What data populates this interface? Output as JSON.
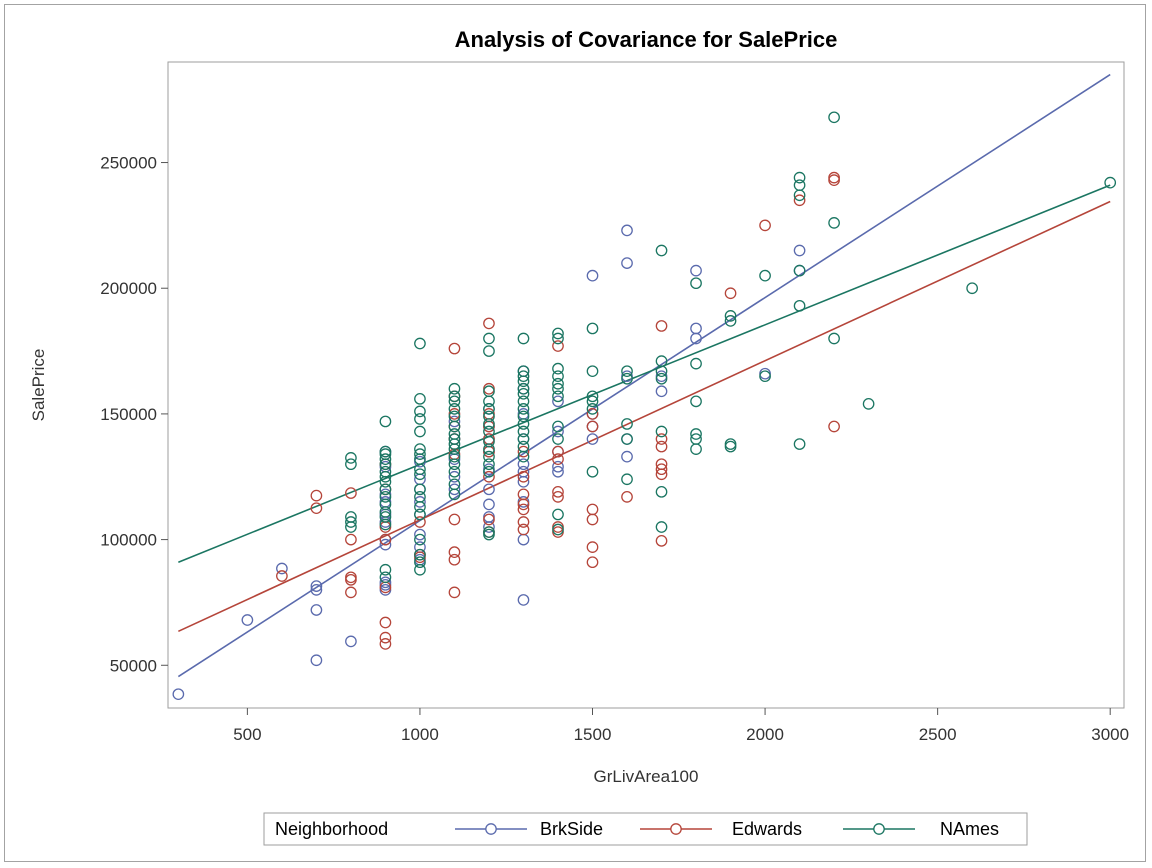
{
  "chart_data": {
    "type": "scatter",
    "title": "Analysis of Covariance for SalePrice",
    "xlabel": "GrLivArea100",
    "ylabel": "SalePrice",
    "xlim": [
      270,
      3040
    ],
    "ylim": [
      33000,
      290000
    ],
    "xticks": [
      500,
      1000,
      1500,
      2000,
      2500,
      3000
    ],
    "yticks": [
      50000,
      100000,
      150000,
      200000,
      250000
    ],
    "legend": {
      "title": "Neighborhood",
      "placement": "bottom"
    },
    "series": [
      {
        "name": "BrkSide",
        "color": "#5a6aad",
        "fit": {
          "x": [
            300,
            3000
          ],
          "y": [
            45500,
            285000
          ]
        },
        "points": [
          [
            300,
            38500
          ],
          [
            500,
            68000
          ],
          [
            600,
            88500
          ],
          [
            700,
            81500
          ],
          [
            700,
            80000
          ],
          [
            700,
            72000
          ],
          [
            700,
            52000
          ],
          [
            800,
            59500
          ],
          [
            900,
            135000
          ],
          [
            900,
            129000
          ],
          [
            900,
            118000
          ],
          [
            900,
            115000
          ],
          [
            900,
            110000
          ],
          [
            900,
            107000
          ],
          [
            900,
            100000
          ],
          [
            900,
            98000
          ],
          [
            900,
            83000
          ],
          [
            900,
            82000
          ],
          [
            900,
            80000
          ],
          [
            1000,
            131000
          ],
          [
            1000,
            124000
          ],
          [
            1000,
            120000
          ],
          [
            1000,
            115000
          ],
          [
            1000,
            110000
          ],
          [
            1000,
            102000
          ],
          [
            1000,
            97000
          ],
          [
            1000,
            92000
          ],
          [
            1100,
            147000
          ],
          [
            1100,
            140000
          ],
          [
            1100,
            132000
          ],
          [
            1100,
            125000
          ],
          [
            1100,
            120000
          ],
          [
            1200,
            152000
          ],
          [
            1200,
            145000
          ],
          [
            1200,
            140000
          ],
          [
            1200,
            135000
          ],
          [
            1200,
            128000
          ],
          [
            1200,
            120000
          ],
          [
            1200,
            114000
          ],
          [
            1200,
            109000
          ],
          [
            1200,
            105000
          ],
          [
            1300,
            167000
          ],
          [
            1300,
            160000
          ],
          [
            1300,
            150000
          ],
          [
            1300,
            140000
          ],
          [
            1300,
            130000
          ],
          [
            1300,
            127000
          ],
          [
            1300,
            123000
          ],
          [
            1300,
            115000
          ],
          [
            1300,
            100000
          ],
          [
            1300,
            76000
          ],
          [
            1400,
            155000
          ],
          [
            1400,
            143000
          ],
          [
            1400,
            135000
          ],
          [
            1400,
            129000
          ],
          [
            1400,
            127000
          ],
          [
            1500,
            205000
          ],
          [
            1500,
            150000
          ],
          [
            1500,
            145000
          ],
          [
            1500,
            140000
          ],
          [
            1600,
            223000
          ],
          [
            1600,
            210000
          ],
          [
            1600,
            165000
          ],
          [
            1600,
            140000
          ],
          [
            1600,
            133000
          ],
          [
            1700,
            165000
          ],
          [
            1700,
            159000
          ],
          [
            1800,
            207000
          ],
          [
            1800,
            184000
          ],
          [
            1800,
            180000
          ],
          [
            2000,
            166000
          ],
          [
            2100,
            215000
          ],
          [
            2100,
            207000
          ]
        ]
      },
      {
        "name": "Edwards",
        "color": "#b5453a",
        "fit": {
          "x": [
            300,
            3000
          ],
          "y": [
            63500,
            234500
          ]
        },
        "points": [
          [
            600,
            85500
          ],
          [
            700,
            117500
          ],
          [
            700,
            112500
          ],
          [
            800,
            118500
          ],
          [
            800,
            100000
          ],
          [
            800,
            85000
          ],
          [
            800,
            84000
          ],
          [
            800,
            79000
          ],
          [
            900,
            130000
          ],
          [
            900,
            120000
          ],
          [
            900,
            105000
          ],
          [
            900,
            100000
          ],
          [
            900,
            81000
          ],
          [
            900,
            67000
          ],
          [
            900,
            61000
          ],
          [
            900,
            58500
          ],
          [
            1000,
            107000
          ],
          [
            1000,
            94000
          ],
          [
            1000,
            93000
          ],
          [
            1100,
            176000
          ],
          [
            1100,
            157000
          ],
          [
            1100,
            150000
          ],
          [
            1100,
            145000
          ],
          [
            1100,
            140000
          ],
          [
            1100,
            134000
          ],
          [
            1100,
            108000
          ],
          [
            1100,
            95000
          ],
          [
            1100,
            92000
          ],
          [
            1100,
            79000
          ],
          [
            1200,
            186000
          ],
          [
            1200,
            160000
          ],
          [
            1200,
            150000
          ],
          [
            1200,
            145000
          ],
          [
            1200,
            140000
          ],
          [
            1200,
            135000
          ],
          [
            1200,
            125000
          ],
          [
            1200,
            108000
          ],
          [
            1200,
            103000
          ],
          [
            1300,
            135000
          ],
          [
            1300,
            125000
          ],
          [
            1300,
            118000
          ],
          [
            1300,
            114000
          ],
          [
            1300,
            112000
          ],
          [
            1300,
            107000
          ],
          [
            1300,
            104000
          ],
          [
            1400,
            177000
          ],
          [
            1400,
            135000
          ],
          [
            1400,
            132000
          ],
          [
            1400,
            119000
          ],
          [
            1400,
            117000
          ],
          [
            1400,
            105000
          ],
          [
            1400,
            103000
          ],
          [
            1500,
            150000
          ],
          [
            1500,
            145000
          ],
          [
            1500,
            112000
          ],
          [
            1500,
            108000
          ],
          [
            1500,
            97000
          ],
          [
            1500,
            91000
          ],
          [
            1600,
            117000
          ],
          [
            1700,
            185000
          ],
          [
            1700,
            140000
          ],
          [
            1700,
            137000
          ],
          [
            1700,
            130000
          ],
          [
            1700,
            128000
          ],
          [
            1700,
            126000
          ],
          [
            1700,
            99500
          ],
          [
            1900,
            198000
          ],
          [
            2000,
            225000
          ],
          [
            2100,
            235000
          ],
          [
            2200,
            244000
          ],
          [
            2200,
            243000
          ],
          [
            2200,
            145000
          ]
        ]
      },
      {
        "name": "NAmes",
        "color": "#1b7662",
        "fit": {
          "x": [
            300,
            3000
          ],
          "y": [
            91000,
            241000
          ]
        },
        "points": [
          [
            800,
            132500
          ],
          [
            800,
            130000
          ],
          [
            800,
            109000
          ],
          [
            800,
            107000
          ],
          [
            800,
            105000
          ],
          [
            900,
            147000
          ],
          [
            900,
            135000
          ],
          [
            900,
            134000
          ],
          [
            900,
            132000
          ],
          [
            900,
            130000
          ],
          [
            900,
            127000
          ],
          [
            900,
            125000
          ],
          [
            900,
            123000
          ],
          [
            900,
            120000
          ],
          [
            900,
            117000
          ],
          [
            900,
            114000
          ],
          [
            900,
            111000
          ],
          [
            900,
            109000
          ],
          [
            900,
            106000
          ],
          [
            900,
            88000
          ],
          [
            900,
            85000
          ],
          [
            1000,
            178000
          ],
          [
            1000,
            156000
          ],
          [
            1000,
            151000
          ],
          [
            1000,
            148000
          ],
          [
            1000,
            143000
          ],
          [
            1000,
            136000
          ],
          [
            1000,
            134000
          ],
          [
            1000,
            132000
          ],
          [
            1000,
            128000
          ],
          [
            1000,
            126000
          ],
          [
            1000,
            120000
          ],
          [
            1000,
            117000
          ],
          [
            1000,
            113000
          ],
          [
            1000,
            110000
          ],
          [
            1000,
            100000
          ],
          [
            1000,
            94000
          ],
          [
            1000,
            91000
          ],
          [
            1000,
            88000
          ],
          [
            1100,
            160000
          ],
          [
            1100,
            157000
          ],
          [
            1100,
            155000
          ],
          [
            1100,
            152000
          ],
          [
            1100,
            149000
          ],
          [
            1100,
            145000
          ],
          [
            1100,
            142000
          ],
          [
            1100,
            140000
          ],
          [
            1100,
            138000
          ],
          [
            1100,
            136000
          ],
          [
            1100,
            133000
          ],
          [
            1100,
            130000
          ],
          [
            1100,
            127000
          ],
          [
            1100,
            122000
          ],
          [
            1100,
            118000
          ],
          [
            1200,
            180000
          ],
          [
            1200,
            175000
          ],
          [
            1200,
            159000
          ],
          [
            1200,
            155000
          ],
          [
            1200,
            152000
          ],
          [
            1200,
            149000
          ],
          [
            1200,
            146000
          ],
          [
            1200,
            143000
          ],
          [
            1200,
            139000
          ],
          [
            1200,
            136000
          ],
          [
            1200,
            133000
          ],
          [
            1200,
            130000
          ],
          [
            1200,
            127000
          ],
          [
            1200,
            103000
          ],
          [
            1200,
            102000
          ],
          [
            1300,
            180000
          ],
          [
            1300,
            167000
          ],
          [
            1300,
            165000
          ],
          [
            1300,
            163000
          ],
          [
            1300,
            160000
          ],
          [
            1300,
            158000
          ],
          [
            1300,
            155000
          ],
          [
            1300,
            152000
          ],
          [
            1300,
            149000
          ],
          [
            1300,
            146000
          ],
          [
            1300,
            143000
          ],
          [
            1300,
            140000
          ],
          [
            1300,
            137000
          ],
          [
            1300,
            133000
          ],
          [
            1400,
            182000
          ],
          [
            1400,
            180000
          ],
          [
            1400,
            168000
          ],
          [
            1400,
            165000
          ],
          [
            1400,
            162000
          ],
          [
            1400,
            160000
          ],
          [
            1400,
            157000
          ],
          [
            1400,
            145000
          ],
          [
            1400,
            140000
          ],
          [
            1400,
            110000
          ],
          [
            1400,
            104000
          ],
          [
            1500,
            184000
          ],
          [
            1500,
            167000
          ],
          [
            1500,
            157000
          ],
          [
            1500,
            155000
          ],
          [
            1500,
            152000
          ],
          [
            1500,
            127000
          ],
          [
            1600,
            167000
          ],
          [
            1600,
            164000
          ],
          [
            1600,
            146000
          ],
          [
            1600,
            140000
          ],
          [
            1600,
            124000
          ],
          [
            1700,
            215000
          ],
          [
            1700,
            171000
          ],
          [
            1700,
            167000
          ],
          [
            1700,
            164000
          ],
          [
            1700,
            143000
          ],
          [
            1700,
            119000
          ],
          [
            1700,
            105000
          ],
          [
            1800,
            202000
          ],
          [
            1800,
            170000
          ],
          [
            1800,
            155000
          ],
          [
            1800,
            142000
          ],
          [
            1800,
            140000
          ],
          [
            1800,
            136000
          ],
          [
            1900,
            189000
          ],
          [
            1900,
            187000
          ],
          [
            1900,
            138000
          ],
          [
            1900,
            137000
          ],
          [
            2000,
            205000
          ],
          [
            2000,
            165000
          ],
          [
            2100,
            244000
          ],
          [
            2100,
            241000
          ],
          [
            2100,
            237000
          ],
          [
            2100,
            207000
          ],
          [
            2100,
            193000
          ],
          [
            2100,
            138000
          ],
          [
            2200,
            268000
          ],
          [
            2200,
            226000
          ],
          [
            2200,
            180000
          ],
          [
            2300,
            154000
          ],
          [
            2600,
            200000
          ],
          [
            3000,
            242000
          ]
        ]
      }
    ]
  }
}
